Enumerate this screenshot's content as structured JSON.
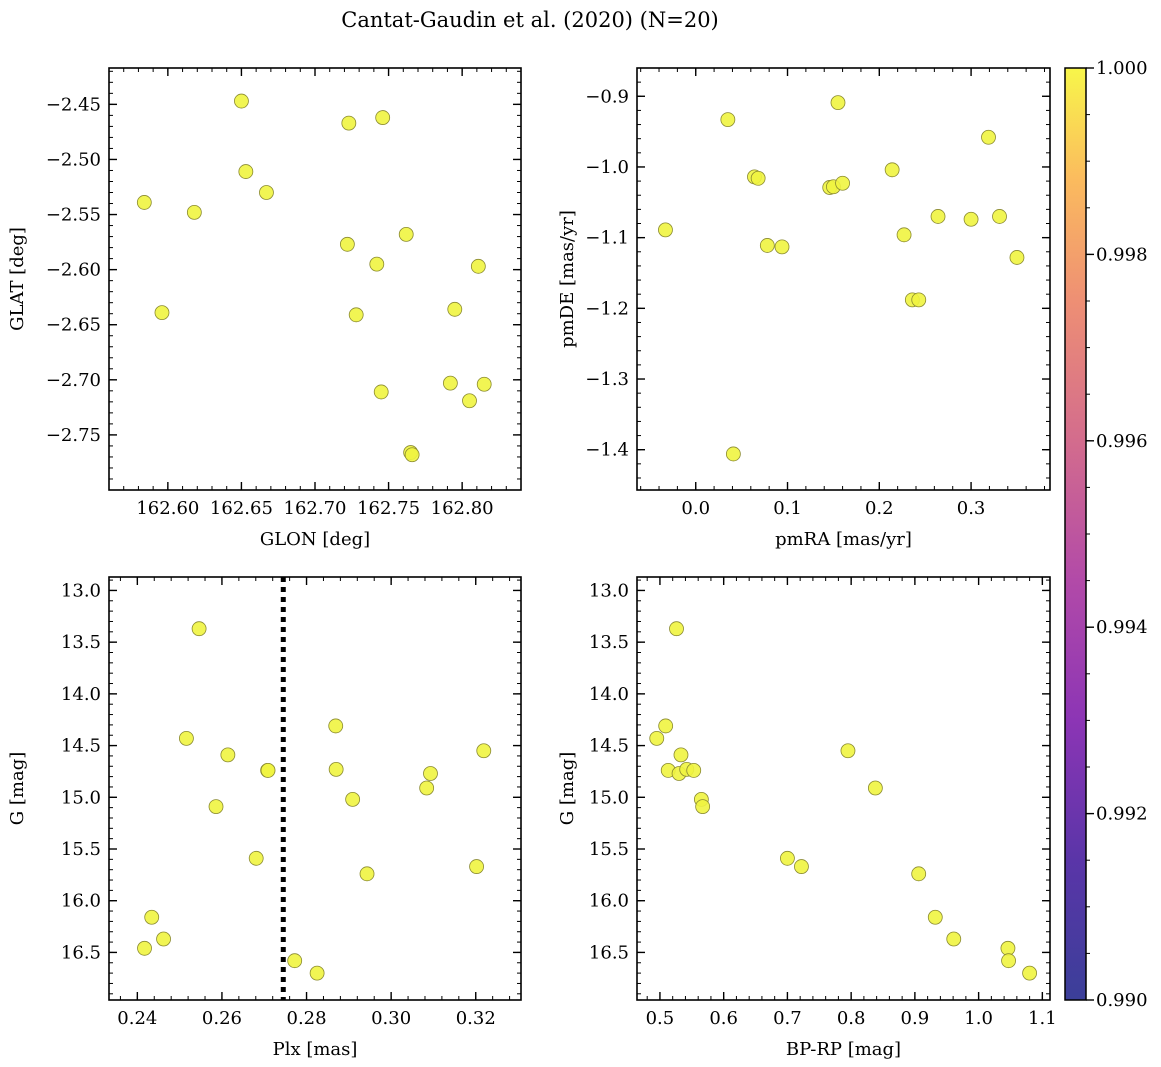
{
  "chart_data": {
    "title": "Cantat-Gaudin et al. (2020) (N=20)",
    "colorbar": {
      "range": [
        0.99,
        1.0
      ],
      "ticks": [
        0.99,
        0.992,
        0.994,
        0.996,
        0.998,
        1.0
      ],
      "tick_labels": [
        "0.990",
        "0.992",
        "0.994",
        "0.996",
        "0.998",
        "1.000"
      ],
      "colormap": "plasma"
    },
    "marker_color": "#f0f440",
    "marker_edge": "#8a8a30",
    "line_color": "#000000",
    "panels": [
      {
        "id": "glon-glat",
        "type": "scatter",
        "xlabel": "GLON [deg]",
        "ylabel": "GLAT [deg]",
        "xlim": [
          162.56,
          162.84
        ],
        "ylim": [
          -2.8,
          -2.417
        ],
        "xticks": [
          162.6,
          162.65,
          162.7,
          162.75,
          162.8
        ],
        "xtick_labels": [
          "162.60",
          "162.65",
          "162.70",
          "162.75",
          "162.80"
        ],
        "yticks": [
          -2.45,
          -2.5,
          -2.55,
          -2.6,
          -2.65,
          -2.7,
          -2.75
        ],
        "ytick_labels": [
          "−2.45",
          "−2.50",
          "−2.55",
          "−2.60",
          "−2.65",
          "−2.70",
          "−2.75"
        ],
        "x": [
          162.584,
          162.596,
          162.618,
          162.65,
          162.653,
          162.667,
          162.722,
          162.723,
          162.728,
          162.742,
          162.745,
          162.746,
          162.762,
          162.765,
          162.766,
          162.792,
          162.795,
          162.805,
          162.811,
          162.815
        ],
        "y": [
          -2.539,
          -2.639,
          -2.548,
          -2.447,
          -2.511,
          -2.53,
          -2.577,
          -2.467,
          -2.641,
          -2.595,
          -2.711,
          -2.462,
          -2.568,
          -2.766,
          -2.768,
          -2.703,
          -2.636,
          -2.719,
          -2.597,
          -2.704
        ]
      },
      {
        "id": "pmra-pmde",
        "type": "scatter",
        "xlabel": "pmRA [mas/yr]",
        "ylabel": "pmDE [mas/yr]",
        "xlim": [
          -0.064,
          0.386
        ],
        "ylim": [
          -1.457,
          -0.86
        ],
        "xticks": [
          0.0,
          0.1,
          0.2,
          0.3
        ],
        "xtick_labels": [
          "0.0",
          "0.1",
          "0.2",
          "0.3"
        ],
        "yticks": [
          -0.9,
          -1.0,
          -1.1,
          -1.2,
          -1.3,
          -1.4
        ],
        "ytick_labels": [
          "−0.9",
          "−1.0",
          "−1.1",
          "−1.2",
          "−1.3",
          "−1.4"
        ],
        "x": [
          -0.033,
          0.035,
          0.041,
          0.064,
          0.068,
          0.078,
          0.094,
          0.146,
          0.15,
          0.155,
          0.16,
          0.214,
          0.227,
          0.236,
          0.243,
          0.264,
          0.3,
          0.319,
          0.331,
          0.35
        ],
        "y": [
          -1.089,
          -0.933,
          -1.406,
          -1.014,
          -1.016,
          -1.111,
          -1.113,
          -1.029,
          -1.028,
          -0.909,
          -1.023,
          -1.004,
          -1.096,
          -1.188,
          -1.188,
          -1.07,
          -1.074,
          -0.958,
          -1.07,
          -1.128
        ]
      },
      {
        "id": "plx-g",
        "type": "scatter",
        "xlabel": "Plx [mas]",
        "ylabel": "G [mag]",
        "xlim": [
          0.2333,
          0.3307
        ],
        "ylim": [
          16.96,
          12.87
        ],
        "xticks": [
          0.24,
          0.26,
          0.28,
          0.3,
          0.32
        ],
        "xtick_labels": [
          "0.24",
          "0.26",
          "0.28",
          "0.30",
          "0.32"
        ],
        "yticks": [
          13.0,
          13.5,
          14.0,
          14.5,
          15.0,
          15.5,
          16.0,
          16.5
        ],
        "ytick_labels": [
          "13.0",
          "13.5",
          "14.0",
          "14.5",
          "15.0",
          "15.5",
          "16.0",
          "16.5"
        ],
        "vline": 0.2745,
        "x": [
          0.2417,
          0.2434,
          0.2462,
          0.2516,
          0.2546,
          0.2586,
          0.2614,
          0.2681,
          0.2708,
          0.2772,
          0.2825,
          0.2869,
          0.287,
          0.2909,
          0.2943,
          0.3084,
          0.3093,
          0.3202,
          0.3219,
          0.2709
        ],
        "y": [
          16.46,
          16.16,
          16.37,
          14.43,
          13.37,
          15.09,
          14.59,
          15.59,
          14.74,
          16.58,
          16.7,
          14.31,
          14.73,
          15.02,
          15.74,
          14.91,
          14.77,
          15.67,
          14.55,
          14.74
        ]
      },
      {
        "id": "bprp-g",
        "type": "scatter",
        "xlabel": "BP-RP [mag]",
        "ylabel": "G [mag]",
        "xlim": [
          0.464,
          1.112
        ],
        "ylim": [
          16.96,
          12.87
        ],
        "xticks": [
          0.5,
          0.6,
          0.7,
          0.8,
          0.9,
          1.0,
          1.1
        ],
        "xtick_labels": [
          "0.5",
          "0.6",
          "0.7",
          "0.8",
          "0.9",
          "1.0",
          "1.1"
        ],
        "yticks": [
          13.0,
          13.5,
          14.0,
          14.5,
          15.0,
          15.5,
          16.0,
          16.5
        ],
        "ytick_labels": [
          "13.0",
          "13.5",
          "14.0",
          "14.5",
          "15.0",
          "15.5",
          "16.0",
          "16.5"
        ],
        "x": [
          0.495,
          0.509,
          0.513,
          0.526,
          0.53,
          0.533,
          0.542,
          0.553,
          0.565,
          0.567,
          0.7,
          0.722,
          0.795,
          0.838,
          0.906,
          0.932,
          0.961,
          1.046,
          1.047,
          1.08
        ],
        "y": [
          14.43,
          14.31,
          14.74,
          13.37,
          14.77,
          14.59,
          14.73,
          14.74,
          15.02,
          15.09,
          15.59,
          15.67,
          14.55,
          14.91,
          15.74,
          16.16,
          16.37,
          16.46,
          16.58,
          16.7
        ]
      }
    ]
  }
}
